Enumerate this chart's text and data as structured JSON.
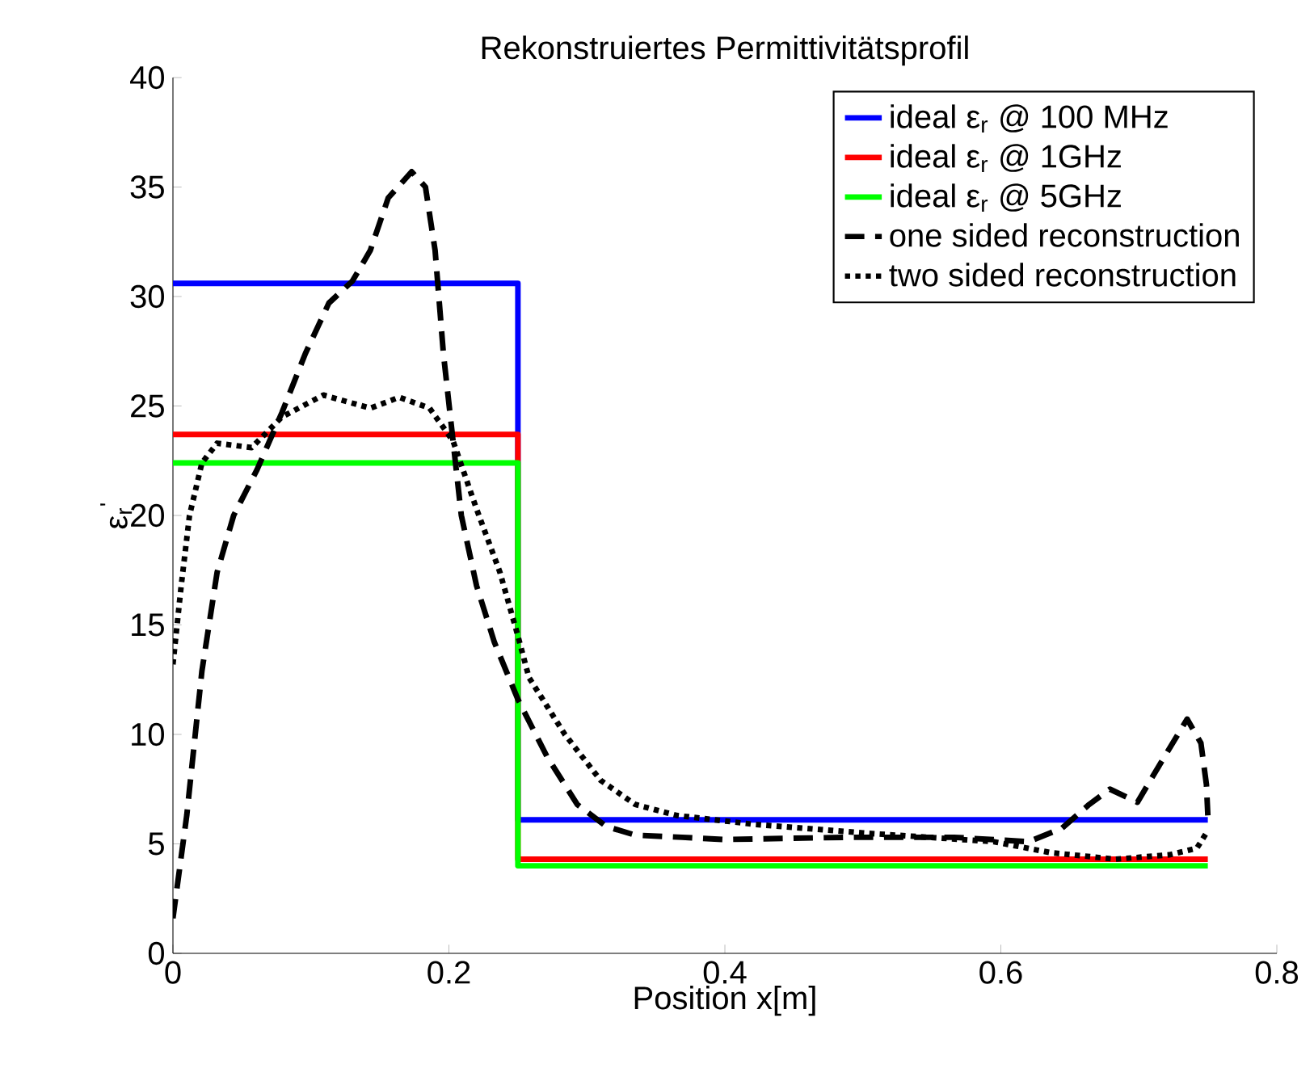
{
  "chart_data": {
    "type": "line",
    "title": "Rekonstruiertes Permittivitätsprofil",
    "xlabel": "Position x[m]",
    "ylabel": "ε$_{r}$$^{'}$",
    "xlim": [
      0,
      0.8
    ],
    "ylim": [
      0,
      40
    ],
    "xticks": [
      0,
      0.2,
      0.4,
      0.6,
      0.8
    ],
    "yticks": [
      0,
      5,
      10,
      15,
      20,
      25,
      30,
      35,
      40
    ],
    "legend": "top right",
    "marker": "none",
    "series": [
      {
        "name": "ideal ε$_{r}$ @ 100 MHz",
        "color": "#0000ff",
        "line_style": "solid",
        "x": [
          0,
          0.25,
          0.25,
          0.75
        ],
        "values": [
          30.6,
          30.6,
          6.1,
          6.1
        ]
      },
      {
        "name": "ideal ε$_{r}$ @ 1GHz",
        "color": "#ff0000",
        "line_style": "solid",
        "x": [
          0,
          0.25,
          0.25,
          0.75
        ],
        "values": [
          23.7,
          23.7,
          4.3,
          4.3
        ]
      },
      {
        "name": "ideal ε$_{r}$ @ 5GHz",
        "color": "#00ff00",
        "line_style": "solid",
        "x": [
          0,
          0.25,
          0.25,
          0.75
        ],
        "values": [
          22.4,
          22.4,
          4.0,
          4.0
        ]
      },
      {
        "name": "one sided reconstruction",
        "color": "#000000",
        "line_style": "dashed",
        "x": [
          0,
          0.01,
          0.021,
          0.032,
          0.044,
          0.061,
          0.079,
          0.096,
          0.113,
          0.13,
          0.143,
          0.156,
          0.173,
          0.183,
          0.19,
          0.196,
          0.203,
          0.209,
          0.22,
          0.233,
          0.25,
          0.271,
          0.293,
          0.314,
          0.335,
          0.369,
          0.4,
          0.487,
          0.566,
          0.62,
          0.644,
          0.664,
          0.679,
          0.699,
          0.714,
          0.735,
          0.745,
          0.749,
          0.75
        ],
        "values": [
          1.6,
          6.3,
          12.9,
          17.4,
          20.0,
          22.1,
          24.7,
          27.4,
          29.7,
          30.7,
          32.1,
          34.5,
          35.7,
          35.0,
          32.1,
          27.4,
          23.4,
          20.0,
          16.8,
          14.2,
          11.6,
          9.0,
          6.8,
          5.8,
          5.4,
          5.3,
          5.2,
          5.3,
          5.3,
          5.1,
          5.7,
          6.8,
          7.5,
          6.9,
          8.5,
          10.7,
          9.6,
          7.7,
          6.3
        ]
      },
      {
        "name": "two sided reconstruction",
        "color": "#000000",
        "line_style": "dotted",
        "x": [
          0,
          0.006,
          0.012,
          0.021,
          0.032,
          0.057,
          0.079,
          0.109,
          0.143,
          0.164,
          0.186,
          0.203,
          0.22,
          0.237,
          0.25,
          0.258,
          0.284,
          0.31,
          0.335,
          0.365,
          0.42,
          0.5,
          0.595,
          0.636,
          0.683,
          0.722,
          0.742,
          0.75
        ],
        "values": [
          13.2,
          16.8,
          20.0,
          22.4,
          23.3,
          23.1,
          24.5,
          25.5,
          24.9,
          25.4,
          24.9,
          23.4,
          20.3,
          17.4,
          14.5,
          12.6,
          10.0,
          7.9,
          6.8,
          6.3,
          5.9,
          5.5,
          5.1,
          4.6,
          4.3,
          4.5,
          4.8,
          5.6
        ]
      }
    ]
  }
}
